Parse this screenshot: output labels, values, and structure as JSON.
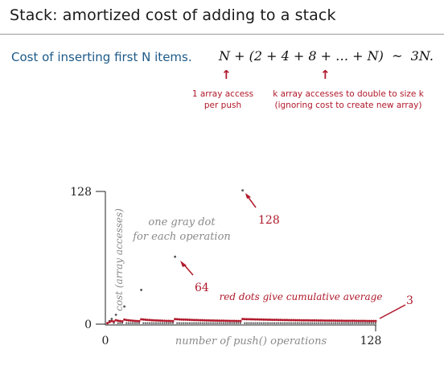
{
  "slide": {
    "title": "Stack:  amortized cost of adding to a stack",
    "intro": "Cost of inserting first N items.",
    "formula": "N + (2 + 4 + 8 + … + N)  ~  3N.",
    "note_left": [
      "1 array access",
      "per push"
    ],
    "note_right": [
      "k array accesses to double to size k",
      "(ignoring cost to create new array)"
    ]
  },
  "colors": {
    "title": "#1a1a1a",
    "intro": "#1d5a88",
    "accent_red": "#b0182a",
    "gray_dots": "#555555",
    "annotation_gray": "#8a8a8a"
  },
  "chart_data": {
    "type": "scatter",
    "xlabel": "number of push() operations",
    "ylabel": "cost (array accesses)",
    "xlim": [
      0,
      128
    ],
    "ylim": [
      0,
      128
    ],
    "x_ticks": [
      "0",
      "128"
    ],
    "y_ticks": [
      "128",
      "0"
    ],
    "gray_series": {
      "description_label": "one gray dot\nfor each operation",
      "spikes": [
        {
          "x": 1,
          "y": 1
        },
        {
          "x": 2,
          "y": 3
        },
        {
          "x": 3,
          "y": 5
        },
        {
          "x": 5,
          "y": 9
        },
        {
          "x": 9,
          "y": 17
        },
        {
          "x": 17,
          "y": 33
        },
        {
          "x": 33,
          "y": 65
        },
        {
          "x": 65,
          "y": 129
        }
      ],
      "baseline_value": 1
    },
    "red_series": {
      "label": "red dots give cumulative average",
      "final_value": 3
    },
    "annotations": [
      {
        "text": "64"
      },
      {
        "text": "128"
      },
      {
        "text": "3"
      }
    ]
  }
}
